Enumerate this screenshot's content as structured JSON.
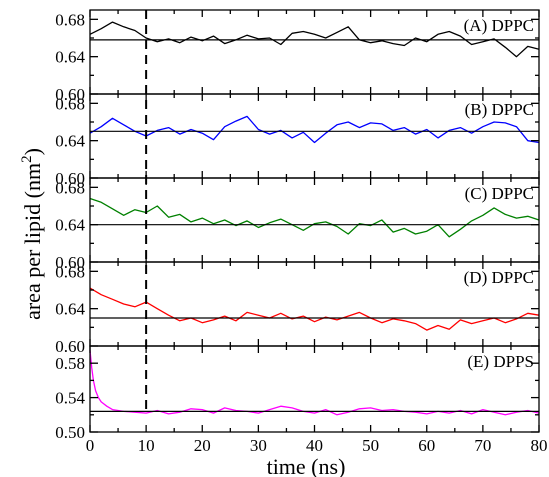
{
  "figure": {
    "xlabel": "time (ns)",
    "ylabel_main": "area per lipid (nm",
    "ylabel_sup": "2",
    "ylabel_close": ")"
  },
  "chart_data": [
    {
      "type": "line",
      "label": "(A) DPPC",
      "color": "#000000",
      "xlim": [
        0,
        80
      ],
      "ylim": [
        0.6,
        0.69
      ],
      "yticks": [
        "0.60",
        "0.64",
        "0.68"
      ],
      "ytick_values": [
        0.6,
        0.64,
        0.68
      ],
      "mean": 0.658,
      "series": [
        {
          "x": [
            0,
            2,
            4,
            6,
            8,
            10,
            12,
            14,
            16,
            18,
            20,
            22,
            24,
            26,
            28,
            30,
            32,
            34,
            36,
            38,
            40,
            42,
            44,
            46,
            48,
            50,
            52,
            54,
            56,
            58,
            60,
            62,
            64,
            66,
            68,
            70,
            72,
            74,
            76,
            78,
            80
          ],
          "values": [
            0.664,
            0.67,
            0.677,
            0.672,
            0.668,
            0.66,
            0.656,
            0.659,
            0.655,
            0.661,
            0.657,
            0.662,
            0.654,
            0.658,
            0.663,
            0.659,
            0.66,
            0.653,
            0.665,
            0.667,
            0.664,
            0.66,
            0.666,
            0.672,
            0.658,
            0.655,
            0.657,
            0.654,
            0.652,
            0.66,
            0.656,
            0.664,
            0.667,
            0.662,
            0.653,
            0.656,
            0.659,
            0.65,
            0.64,
            0.651,
            0.648
          ]
        }
      ]
    },
    {
      "type": "line",
      "label": "(B) DPPC",
      "color": "#0000ff",
      "xlim": [
        0,
        80
      ],
      "ylim": [
        0.6,
        0.69
      ],
      "yticks": [
        "0.60",
        "0.64",
        "0.68"
      ],
      "ytick_values": [
        0.6,
        0.64,
        0.68
      ],
      "mean": 0.65,
      "series": [
        {
          "x": [
            0,
            2,
            4,
            6,
            8,
            10,
            12,
            14,
            16,
            18,
            20,
            22,
            24,
            26,
            28,
            30,
            32,
            34,
            36,
            38,
            40,
            42,
            44,
            46,
            48,
            50,
            52,
            54,
            56,
            58,
            60,
            62,
            64,
            66,
            68,
            70,
            72,
            74,
            76,
            78,
            80
          ],
          "values": [
            0.648,
            0.655,
            0.664,
            0.657,
            0.65,
            0.645,
            0.651,
            0.654,
            0.647,
            0.652,
            0.648,
            0.641,
            0.655,
            0.661,
            0.666,
            0.652,
            0.647,
            0.651,
            0.643,
            0.649,
            0.638,
            0.648,
            0.657,
            0.66,
            0.654,
            0.659,
            0.658,
            0.651,
            0.654,
            0.647,
            0.652,
            0.643,
            0.651,
            0.654,
            0.648,
            0.655,
            0.66,
            0.659,
            0.655,
            0.64,
            0.638
          ]
        }
      ]
    },
    {
      "type": "line",
      "label": "(C) DPPC",
      "color": "#008000",
      "xlim": [
        0,
        80
      ],
      "ylim": [
        0.6,
        0.69
      ],
      "yticks": [
        "0.60",
        "0.64",
        "0.68"
      ],
      "ytick_values": [
        0.6,
        0.64,
        0.68
      ],
      "mean": 0.64,
      "series": [
        {
          "x": [
            0,
            2,
            4,
            6,
            8,
            10,
            12,
            14,
            16,
            18,
            20,
            22,
            24,
            26,
            28,
            30,
            32,
            34,
            36,
            38,
            40,
            42,
            44,
            46,
            48,
            50,
            52,
            54,
            56,
            58,
            60,
            62,
            64,
            66,
            68,
            70,
            72,
            74,
            76,
            78,
            80
          ],
          "values": [
            0.668,
            0.664,
            0.657,
            0.65,
            0.656,
            0.653,
            0.66,
            0.648,
            0.651,
            0.643,
            0.647,
            0.641,
            0.645,
            0.639,
            0.644,
            0.637,
            0.642,
            0.646,
            0.64,
            0.634,
            0.641,
            0.643,
            0.638,
            0.63,
            0.641,
            0.639,
            0.645,
            0.632,
            0.636,
            0.63,
            0.633,
            0.64,
            0.627,
            0.635,
            0.644,
            0.65,
            0.658,
            0.651,
            0.647,
            0.649,
            0.645
          ]
        }
      ]
    },
    {
      "type": "line",
      "label": "(D) DPPC",
      "color": "#ff0000",
      "xlim": [
        0,
        80
      ],
      "ylim": [
        0.6,
        0.69
      ],
      "yticks": [
        "0.60",
        "0.64",
        "0.68"
      ],
      "ytick_values": [
        0.6,
        0.64,
        0.68
      ],
      "mean": 0.63,
      "series": [
        {
          "x": [
            0,
            2,
            4,
            6,
            8,
            10,
            12,
            14,
            16,
            18,
            20,
            22,
            24,
            26,
            28,
            30,
            32,
            34,
            36,
            38,
            40,
            42,
            44,
            46,
            48,
            50,
            52,
            54,
            56,
            58,
            60,
            62,
            64,
            66,
            68,
            70,
            72,
            74,
            76,
            78,
            80
          ],
          "values": [
            0.662,
            0.655,
            0.65,
            0.645,
            0.642,
            0.647,
            0.64,
            0.633,
            0.627,
            0.63,
            0.625,
            0.628,
            0.632,
            0.627,
            0.636,
            0.633,
            0.63,
            0.635,
            0.629,
            0.632,
            0.626,
            0.631,
            0.628,
            0.632,
            0.636,
            0.63,
            0.625,
            0.629,
            0.627,
            0.624,
            0.617,
            0.622,
            0.618,
            0.628,
            0.624,
            0.627,
            0.63,
            0.625,
            0.629,
            0.635,
            0.633
          ]
        }
      ]
    },
    {
      "type": "line",
      "label": "(E) DPPS",
      "color": "#ff00ff",
      "xlim": [
        0,
        80
      ],
      "ylim": [
        0.5,
        0.6
      ],
      "yticks": [
        "0.50",
        "0.54",
        "0.58"
      ],
      "ytick_values": [
        0.5,
        0.54,
        0.58
      ],
      "mean": 0.524,
      "series": [
        {
          "x": [
            0,
            0.3,
            0.6,
            1,
            1.5,
            2,
            3,
            4,
            6,
            8,
            10,
            12,
            14,
            16,
            18,
            20,
            22,
            24,
            26,
            28,
            30,
            32,
            34,
            36,
            38,
            40,
            42,
            44,
            46,
            48,
            50,
            52,
            54,
            56,
            58,
            60,
            62,
            64,
            66,
            68,
            70,
            72,
            74,
            76,
            78,
            80
          ],
          "values": [
            0.595,
            0.575,
            0.56,
            0.548,
            0.54,
            0.535,
            0.53,
            0.526,
            0.524,
            0.523,
            0.522,
            0.525,
            0.521,
            0.523,
            0.527,
            0.526,
            0.522,
            0.528,
            0.525,
            0.524,
            0.522,
            0.526,
            0.53,
            0.528,
            0.524,
            0.522,
            0.526,
            0.52,
            0.523,
            0.527,
            0.528,
            0.525,
            0.526,
            0.524,
            0.523,
            0.521,
            0.524,
            0.522,
            0.525,
            0.521,
            0.526,
            0.523,
            0.52,
            0.523,
            0.525,
            0.522
          ]
        }
      ]
    }
  ],
  "x_axis": {
    "ticks": [
      "0",
      "10",
      "20",
      "30",
      "40",
      "50",
      "60",
      "70",
      "80"
    ],
    "tick_values": [
      0,
      10,
      20,
      30,
      40,
      50,
      60,
      70,
      80
    ]
  },
  "marker": {
    "x": 10
  }
}
